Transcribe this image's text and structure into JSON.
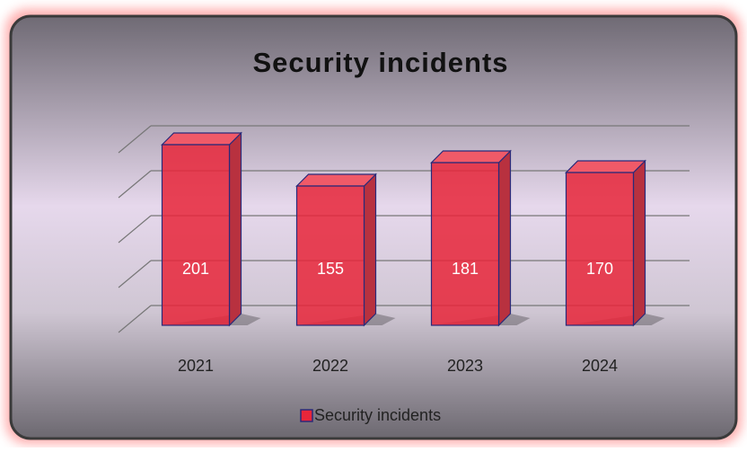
{
  "chart_data": {
    "type": "bar3d",
    "title": "Security incidents",
    "categories": [
      "2021",
      "2022",
      "2023",
      "2024"
    ],
    "series": [
      {
        "name": "Security incidents",
        "color": "#e8263a",
        "values": [
          201,
          155,
          181,
          170
        ]
      }
    ],
    "ylim": [
      0,
      250
    ],
    "yticks": [
      0,
      50,
      100,
      150,
      200
    ],
    "grid": true,
    "legend": "bottom"
  }
}
